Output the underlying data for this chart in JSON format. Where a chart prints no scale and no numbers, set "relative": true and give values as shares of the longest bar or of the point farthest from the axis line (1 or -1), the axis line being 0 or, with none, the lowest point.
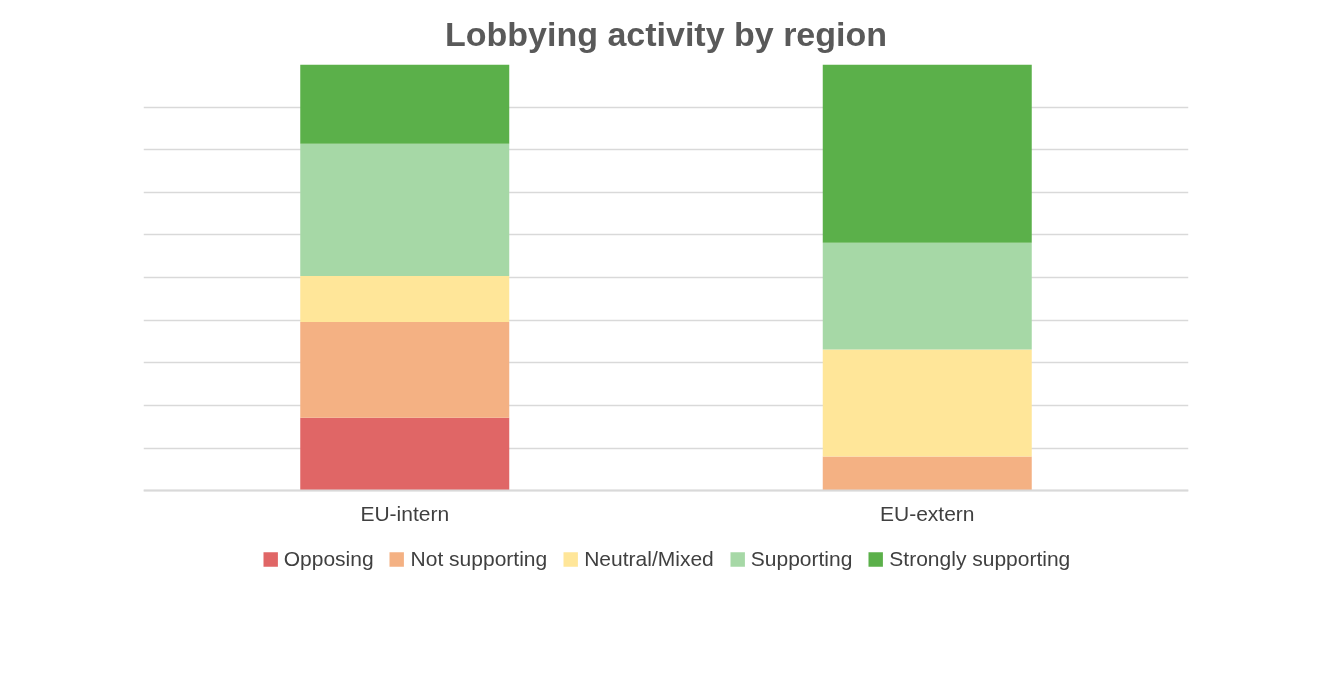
{
  "chart_data": {
    "type": "bar",
    "title": "Lobbying activity by region",
    "categories": [
      "EU-intern",
      "EU-extern"
    ],
    "stacked": true,
    "relative": true,
    "grid": "y",
    "legend": "bottom",
    "series": [
      {
        "name": "Opposing",
        "color": "#e06666",
        "values": [
          0.171,
          0
        ]
      },
      {
        "name": "Not supporting",
        "color": "#f4b183",
        "values": [
          0.225,
          0.08
        ]
      },
      {
        "name": "Neutral/Mixed",
        "color": "#ffe699",
        "values": [
          0.108,
          0.251
        ]
      },
      {
        "name": "Supporting",
        "color": "#a6d8a6",
        "values": [
          0.31,
          0.251
        ]
      },
      {
        "name": "Strongly supporting",
        "color": "#5bb04a",
        "values": [
          0.186,
          0.418
        ]
      }
    ]
  }
}
